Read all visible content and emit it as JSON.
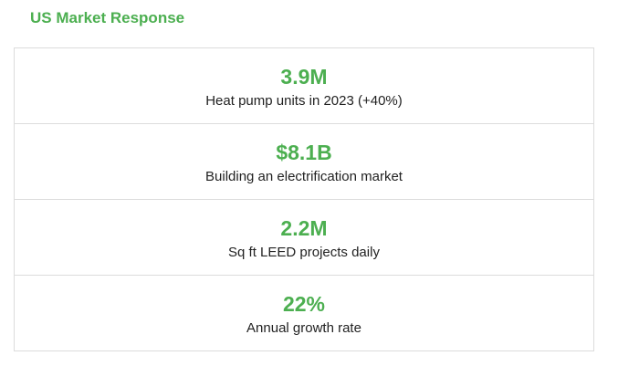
{
  "section": {
    "title": "US Market Response"
  },
  "colors": {
    "accent": "#4caf50",
    "text": "#222222",
    "border": "#dcdcdc"
  },
  "stats": [
    {
      "value": "3.9M",
      "label": "Heat pump units in 2023 (+40%)"
    },
    {
      "value": "$8.1B",
      "label": "Building an electrification market"
    },
    {
      "value": "2.2M",
      "label": "Sq ft LEED projects daily"
    },
    {
      "value": "22%",
      "label": "Annual growth rate"
    }
  ]
}
